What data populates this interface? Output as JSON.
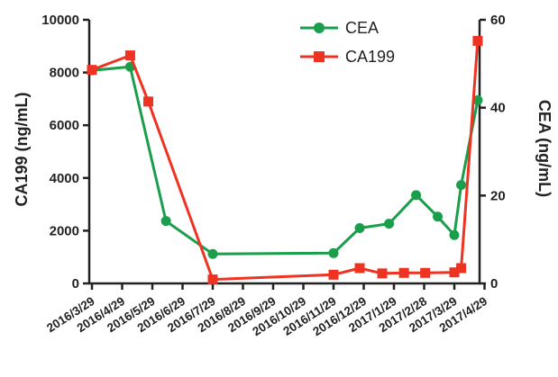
{
  "chart_data": {
    "type": "line",
    "x_categories": [
      "2016/3/29",
      "2016/4/29",
      "2016/5/29",
      "2016/6/29",
      "2016/7/29",
      "2016/8/29",
      "2016/9/29",
      "2016/10/29",
      "2016/11/29",
      "2016/12/29",
      "2017/1/29",
      "2017/2/28",
      "2017/3/29",
      "2017/4/29"
    ],
    "left_axis": {
      "label": "CA199  (ng/mL)",
      "ylim": [
        0,
        10000
      ],
      "ticks": [
        "0",
        "2000",
        "4000",
        "6000",
        "8000",
        "10000"
      ]
    },
    "right_axis": {
      "label": "CEA  (ng/mL)",
      "ylim": [
        0,
        60
      ],
      "ticks": [
        "0",
        "20",
        "40",
        "60"
      ]
    },
    "series": [
      {
        "name": "CEA",
        "axis": "right",
        "color": "#1a9e4b",
        "marker": "circle",
        "points": [
          {
            "x": "2016/3/29",
            "y": 48.5
          },
          {
            "x": "2016/5/7",
            "y": 49.3
          },
          {
            "x": "2016/6/12",
            "y": 14.2
          },
          {
            "x": "2016/7/29",
            "y": 6.7
          },
          {
            "x": "2016/11/29",
            "y": 6.9
          },
          {
            "x": "2016/12/25",
            "y": 12.6
          },
          {
            "x": "2017/1/24",
            "y": 13.6
          },
          {
            "x": "2017/2/20",
            "y": 20.1
          },
          {
            "x": "2017/3/13",
            "y": 15.2
          },
          {
            "x": "2017/3/29",
            "y": 11.0
          },
          {
            "x": "2017/4/5",
            "y": 22.4
          },
          {
            "x": "2017/4/22",
            "y": 41.7
          }
        ]
      },
      {
        "name": "CA199",
        "axis": "left",
        "color": "#ee3322",
        "marker": "square",
        "points": [
          {
            "x": "2016/3/29",
            "y": 8100
          },
          {
            "x": "2016/5/7",
            "y": 8650
          },
          {
            "x": "2016/5/25",
            "y": 6900
          },
          {
            "x": "2016/7/29",
            "y": 150
          },
          {
            "x": "2016/11/29",
            "y": 330
          },
          {
            "x": "2016/12/25",
            "y": 580
          },
          {
            "x": "2017/1/17",
            "y": 380
          },
          {
            "x": "2017/2/8",
            "y": 400
          },
          {
            "x": "2017/3/1",
            "y": 400
          },
          {
            "x": "2017/3/29",
            "y": 420
          },
          {
            "x": "2017/4/5",
            "y": 580
          },
          {
            "x": "2017/4/22",
            "y": 9200
          }
        ]
      }
    ],
    "legend": {
      "placement": "top-center"
    }
  }
}
